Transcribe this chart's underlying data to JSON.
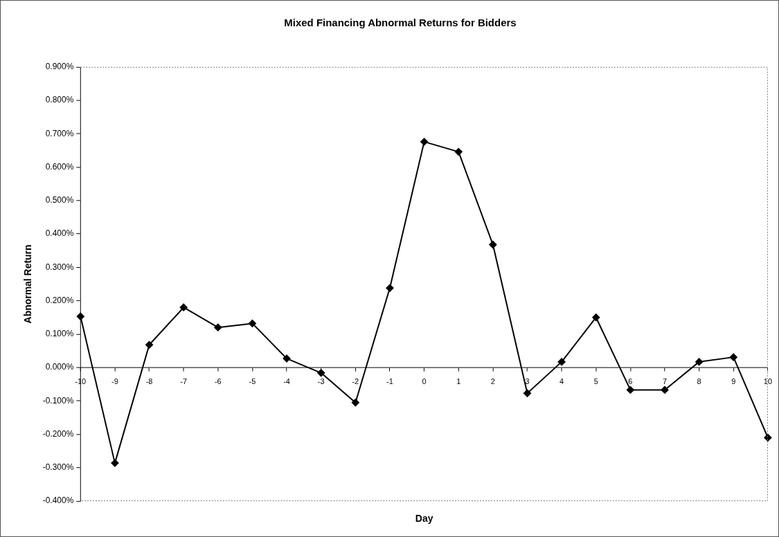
{
  "chart_data": {
    "type": "line",
    "title": "Mixed Financing Abnormal Returns for Bidders",
    "xlabel": "Day",
    "ylabel": "Abnormal Return",
    "categories": [
      "-10",
      "-9",
      "-8",
      "-7",
      "-6",
      "-5",
      "-4",
      "-3",
      "-2",
      "-1",
      "0",
      "1",
      "2",
      "3",
      "4",
      "5",
      "6",
      "7",
      "8",
      "9",
      "10"
    ],
    "values": [
      0.153,
      -0.286,
      0.068,
      0.18,
      0.12,
      0.132,
      0.027,
      -0.016,
      -0.105,
      0.238,
      0.676,
      0.646,
      0.368,
      -0.077,
      0.017,
      0.15,
      -0.067,
      -0.067,
      0.017,
      0.031,
      -0.21
    ],
    "color": "#000000",
    "marker": "diamond",
    "line_style": "solid",
    "ylim": [
      -0.4,
      0.9
    ],
    "yticks": [
      {
        "value": -0.4,
        "label": "-0.400%"
      },
      {
        "value": -0.3,
        "label": "-0.300%"
      },
      {
        "value": -0.2,
        "label": "-0.200%"
      },
      {
        "value": -0.1,
        "label": "-0.100%"
      },
      {
        "value": 0,
        "label": "0.000%"
      },
      {
        "value": 0.1,
        "label": "0.100%"
      },
      {
        "value": 0.2,
        "label": "0.200%"
      },
      {
        "value": 0.3,
        "label": "0.300%"
      },
      {
        "value": 0.4,
        "label": "0.400%"
      },
      {
        "value": 0.5,
        "label": "0.500%"
      },
      {
        "value": 0.6,
        "label": "0.600%"
      },
      {
        "value": 0.7,
        "label": "0.700%"
      },
      {
        "value": 0.8,
        "label": "0.800%"
      },
      {
        "value": 0.9,
        "label": "0.900%"
      }
    ]
  }
}
